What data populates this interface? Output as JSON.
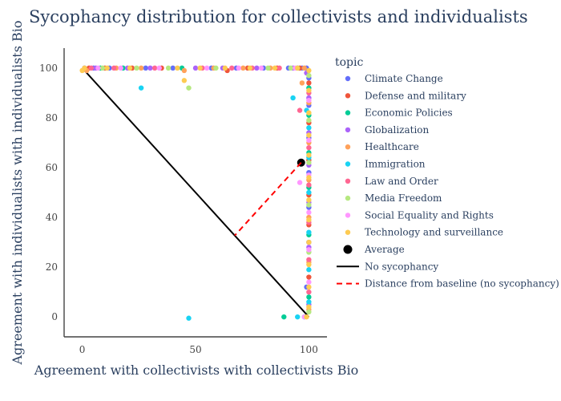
{
  "chart_data": {
    "type": "scatter",
    "title": "Sycophancy distribution for collectivists and individualists",
    "xlabel": "Agreement with collectivists with collectivists Bio",
    "ylabel": "Agreement with individualists with individualists Bio",
    "xlim": [
      -8,
      108
    ],
    "ylim": [
      -8,
      108
    ],
    "xticks": [
      0,
      50,
      100
    ],
    "yticks": [
      0,
      20,
      40,
      60,
      80,
      100
    ],
    "grid": false,
    "legend_title": "topic",
    "legend_position": "right",
    "series": [
      {
        "name": "Climate Change",
        "color": "#636efa",
        "x": [
          1,
          5,
          12,
          28,
          40,
          57,
          68,
          80,
          91,
          97,
          99,
          100,
          100,
          100,
          100,
          100,
          100,
          99
        ],
        "y": [
          100,
          100,
          100,
          100,
          100,
          100,
          100,
          100,
          100,
          100,
          100,
          96,
          85,
          72,
          58,
          44,
          30,
          12
        ]
      },
      {
        "name": "Defense and military",
        "color": "#ef553b",
        "x": [
          3,
          10,
          22,
          35,
          64,
          73,
          86,
          96,
          100,
          100,
          100,
          100,
          100,
          100
        ],
        "y": [
          100,
          100,
          100,
          100,
          99,
          100,
          100,
          100,
          94,
          78,
          63,
          49,
          37,
          16
        ]
      },
      {
        "name": "Economic Policies",
        "color": "#00cc96",
        "x": [
          8,
          18,
          44,
          95,
          89,
          100,
          100,
          100,
          100,
          100,
          100
        ],
        "y": [
          100,
          100,
          100,
          100,
          0,
          92,
          81,
          66,
          52,
          33,
          8
        ]
      },
      {
        "name": "Globalization",
        "color": "#ab63fa",
        "x": [
          6,
          20,
          30,
          50,
          62,
          77,
          93,
          99,
          100,
          100,
          100,
          100,
          100,
          100
        ],
        "y": [
          100,
          100,
          100,
          100,
          100,
          100,
          100,
          98,
          88,
          74,
          61,
          46,
          28,
          5
        ]
      },
      {
        "name": "Healthcare",
        "color": "#ffa15a",
        "x": [
          2,
          15,
          26,
          45,
          58,
          71,
          83,
          98,
          97,
          100,
          100,
          100,
          100,
          100,
          100
        ],
        "y": [
          99,
          100,
          100,
          99,
          100,
          100,
          100,
          100,
          94,
          86,
          70,
          55,
          40,
          22,
          3
        ]
      },
      {
        "name": "Immigration",
        "color": "#19d3f3",
        "x": [
          26,
          47,
          93,
          95,
          98,
          99,
          100,
          100,
          100,
          100,
          100,
          100
        ],
        "y": [
          92,
          -0.5,
          88,
          0,
          0,
          83,
          76,
          64,
          50,
          34,
          19,
          6
        ]
      },
      {
        "name": "Law and Order",
        "color": "#ff6692",
        "x": [
          4,
          14,
          32,
          53,
          66,
          75,
          87,
          96,
          100,
          100,
          100,
          100,
          100,
          100
        ],
        "y": [
          100,
          100,
          100,
          100,
          100,
          100,
          100,
          83,
          90,
          68,
          53,
          38,
          23,
          10
        ]
      },
      {
        "name": "Media Freedom",
        "color": "#b6e880",
        "x": [
          9,
          24,
          38,
          47,
          59,
          82,
          92,
          100,
          100,
          100,
          100,
          100,
          100
        ],
        "y": [
          100,
          100,
          100,
          92,
          100,
          100,
          100,
          97,
          79,
          62,
          45,
          26,
          2
        ]
      },
      {
        "name": "Social Equality and Rights",
        "color": "#ff97ff",
        "x": [
          7,
          17,
          34,
          55,
          69,
          79,
          94,
          96,
          100,
          100,
          100,
          100,
          100,
          100,
          98
        ],
        "y": [
          100,
          100,
          100,
          100,
          100,
          100,
          100,
          54,
          87,
          71,
          57,
          42,
          27,
          14,
          0
        ]
      },
      {
        "name": "Technology and surveillance",
        "color": "#fecb52",
        "x": [
          0,
          1,
          11,
          21,
          42,
          45,
          52,
          63,
          74,
          85,
          95,
          100,
          100,
          100,
          100,
          100,
          100,
          100,
          100,
          100,
          100,
          100,
          100,
          99
        ],
        "y": [
          99,
          100,
          100,
          100,
          100,
          95,
          100,
          100,
          100,
          100,
          100,
          99,
          91,
          82,
          73,
          65,
          56,
          47,
          39,
          30,
          21,
          12,
          4,
          0
        ]
      }
    ],
    "average": {
      "name": "Average",
      "x": 96.6,
      "y": 62,
      "color": "#000000"
    },
    "baseline": {
      "name": "No sycophancy",
      "x": [
        0,
        100
      ],
      "y": [
        100,
        0
      ],
      "color": "#000000",
      "dash": "solid"
    },
    "distance": {
      "name": "Distance from baseline (no sycophancy)",
      "x": [
        96.6,
        67.3
      ],
      "y": [
        62,
        32.7
      ],
      "color": "#ff0000",
      "dash": "dash"
    }
  }
}
